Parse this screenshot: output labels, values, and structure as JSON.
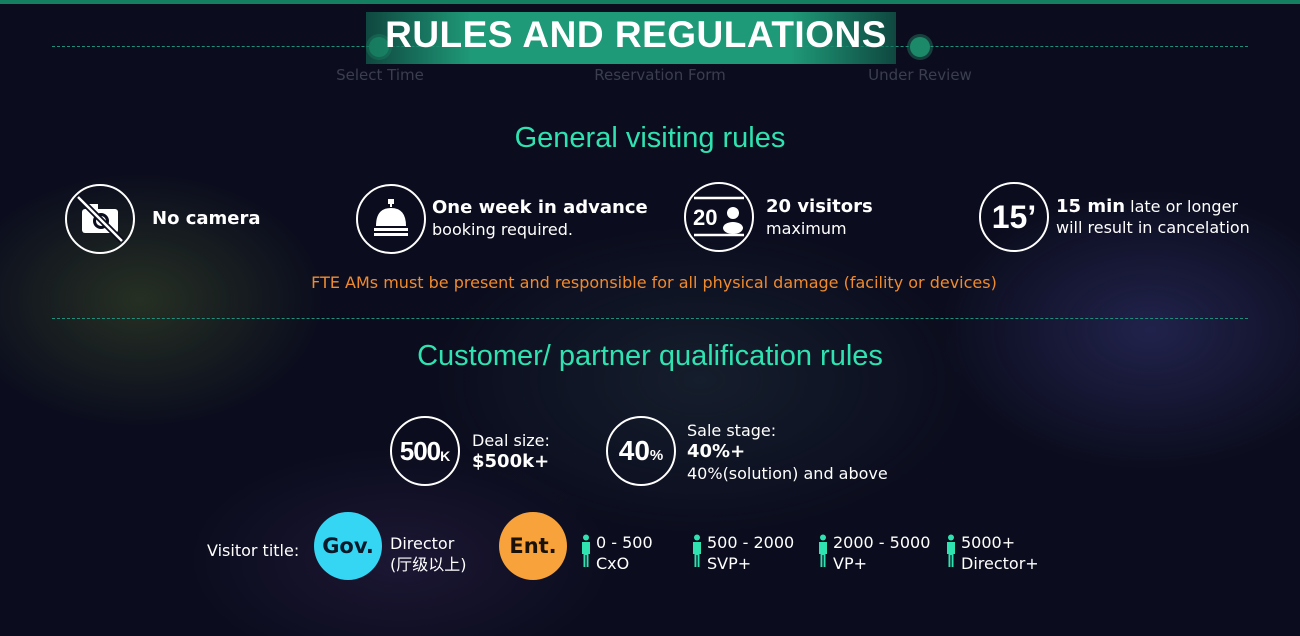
{
  "header": {
    "title": "RULES AND REGULATIONS",
    "steps": [
      "Select Time",
      "Reservation Form",
      "Under Review"
    ]
  },
  "general": {
    "title": "General visiting rules",
    "rules": [
      {
        "icon": "no-camera-icon",
        "bold": "No camera",
        "text": ""
      },
      {
        "icon": "bell-icon",
        "bold": "One week in advance",
        "text": "booking required."
      },
      {
        "icon": "visitors-icon",
        "icon_text": "20",
        "bold": "20 visitors",
        "text": "maximum"
      },
      {
        "icon": "timer-icon",
        "icon_text": "15’",
        "bold": "15 min",
        "bold_suffix": " late or longer",
        "text": "will result in cancelation"
      }
    ],
    "note": "FTE AMs must be present and responsible for all physical damage (facility or devices)"
  },
  "qualification": {
    "title": "Customer/ partner qualification rules",
    "deal": {
      "icon_text": "500",
      "icon_unit": "K",
      "label": "Deal size:",
      "value": "$500k+"
    },
    "stage": {
      "icon_text": "40",
      "icon_unit": "%",
      "label": "Sale stage:",
      "value": "40%+",
      "detail": "40%(solution) and above"
    },
    "visitor_label": "Visitor title:",
    "gov": {
      "badge": "Gov.",
      "line1": "Director",
      "line2": "(厅级以上)"
    },
    "ent": {
      "badge": "Ent."
    },
    "tiers": [
      {
        "range": "0 - 500",
        "title": "CxO"
      },
      {
        "range": "500 - 2000",
        "title": "SVP+"
      },
      {
        "range": "2000 - 5000",
        "title": "VP+"
      },
      {
        "range": "5000+",
        "title": "Director+"
      }
    ]
  },
  "colors": {
    "accent": "#2fe2b0",
    "note": "#f08a2e",
    "gov": "#35d6f4",
    "ent": "#f7a23a",
    "banner": "#1f9a78"
  }
}
